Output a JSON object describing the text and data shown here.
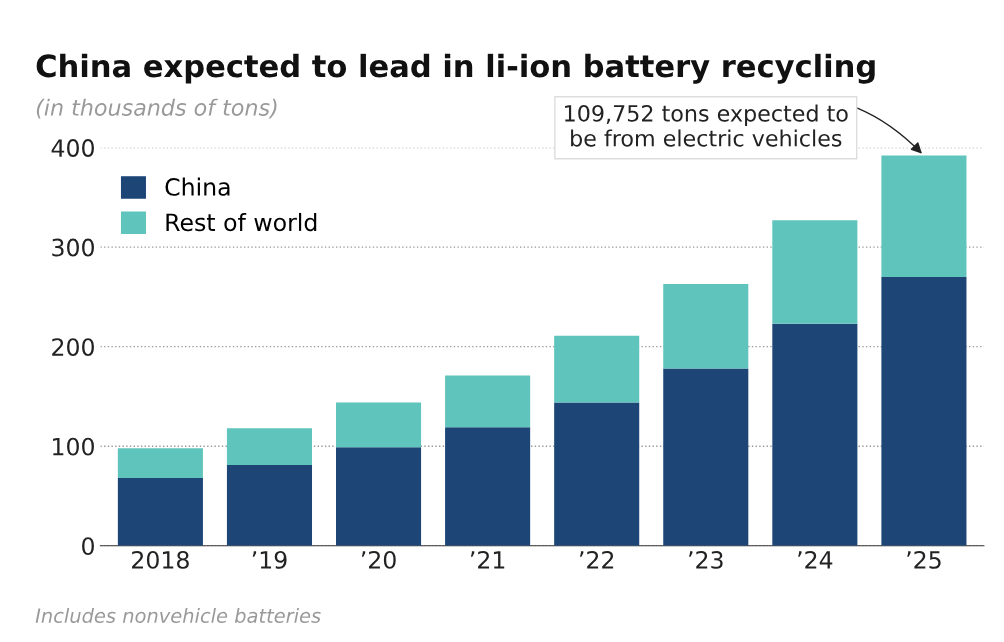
{
  "chart_data": {
    "type": "bar",
    "title": "China expected to lead in li-ion battery recycling",
    "subtitle": "(in thousands of tons)",
    "categories": [
      "2018",
      "’19",
      "’20",
      "’21",
      "’22",
      "’23",
      "’24",
      "’25"
    ],
    "series": [
      {
        "name": "China",
        "color": "#1d4677",
        "values": [
          68,
          81,
          99,
          119,
          144,
          178,
          223,
          270
        ]
      },
      {
        "name": "Rest of world",
        "color": "#5fc4bb",
        "values": [
          30,
          37,
          45,
          52,
          67,
          85,
          104,
          122
        ]
      }
    ],
    "stacked": true,
    "ylim": [
      0,
      400
    ],
    "yticks": [
      0,
      100,
      200,
      300,
      400
    ],
    "grid": "y",
    "legend": "top left",
    "annotations": [
      {
        "text": "109,752 tons expected to\nbe from electric vehicles",
        "x": "’25",
        "y": 392
      },
      "Includes nonvehicle batteries"
    ]
  }
}
